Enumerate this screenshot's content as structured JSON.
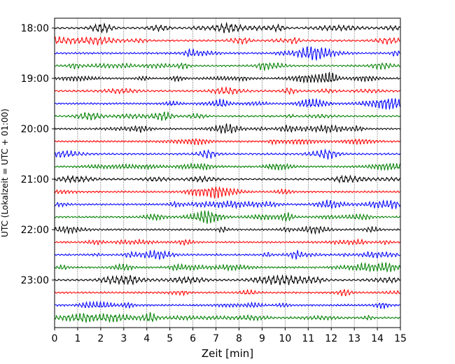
{
  "chart_data": {
    "type": "line",
    "title": "",
    "xlabel": "Zeit  [min]",
    "ylabel": "UTC (Lokalzeit = UTC + 01:00)",
    "xlim": [
      0,
      15
    ],
    "x_ticks": [
      "0",
      "1",
      "2",
      "3",
      "4",
      "5",
      "6",
      "7",
      "8",
      "9",
      "10",
      "11",
      "12",
      "13",
      "14",
      "15"
    ],
    "y_ticks": [
      "18:00",
      "19:00",
      "20:00",
      "21:00",
      "22:00",
      "23:00"
    ],
    "grid": "vertical dotted lines at each minute",
    "legend": "none",
    "trace_interval_minutes": 15,
    "colors": [
      "#000000",
      "#ff0000",
      "#0000ff",
      "#008000"
    ],
    "series": [
      {
        "start": "18:00",
        "color": "#000000"
      },
      {
        "start": "18:15",
        "color": "#ff0000"
      },
      {
        "start": "18:30",
        "color": "#0000ff"
      },
      {
        "start": "18:45",
        "color": "#008000"
      },
      {
        "start": "19:00",
        "color": "#000000"
      },
      {
        "start": "19:15",
        "color": "#ff0000"
      },
      {
        "start": "19:30",
        "color": "#0000ff"
      },
      {
        "start": "19:45",
        "color": "#008000"
      },
      {
        "start": "20:00",
        "color": "#000000"
      },
      {
        "start": "20:15",
        "color": "#ff0000"
      },
      {
        "start": "20:30",
        "color": "#0000ff"
      },
      {
        "start": "20:45",
        "color": "#008000"
      },
      {
        "start": "21:00",
        "color": "#000000"
      },
      {
        "start": "21:15",
        "color": "#ff0000"
      },
      {
        "start": "21:30",
        "color": "#0000ff"
      },
      {
        "start": "21:45",
        "color": "#008000"
      },
      {
        "start": "22:00",
        "color": "#000000"
      },
      {
        "start": "22:15",
        "color": "#ff0000"
      },
      {
        "start": "22:30",
        "color": "#0000ff"
      },
      {
        "start": "22:45",
        "color": "#008000"
      },
      {
        "start": "23:00",
        "color": "#000000"
      },
      {
        "start": "23:15",
        "color": "#ff0000"
      },
      {
        "start": "23:30",
        "color": "#0000ff"
      },
      {
        "start": "23:45",
        "color": "#008000"
      }
    ]
  }
}
